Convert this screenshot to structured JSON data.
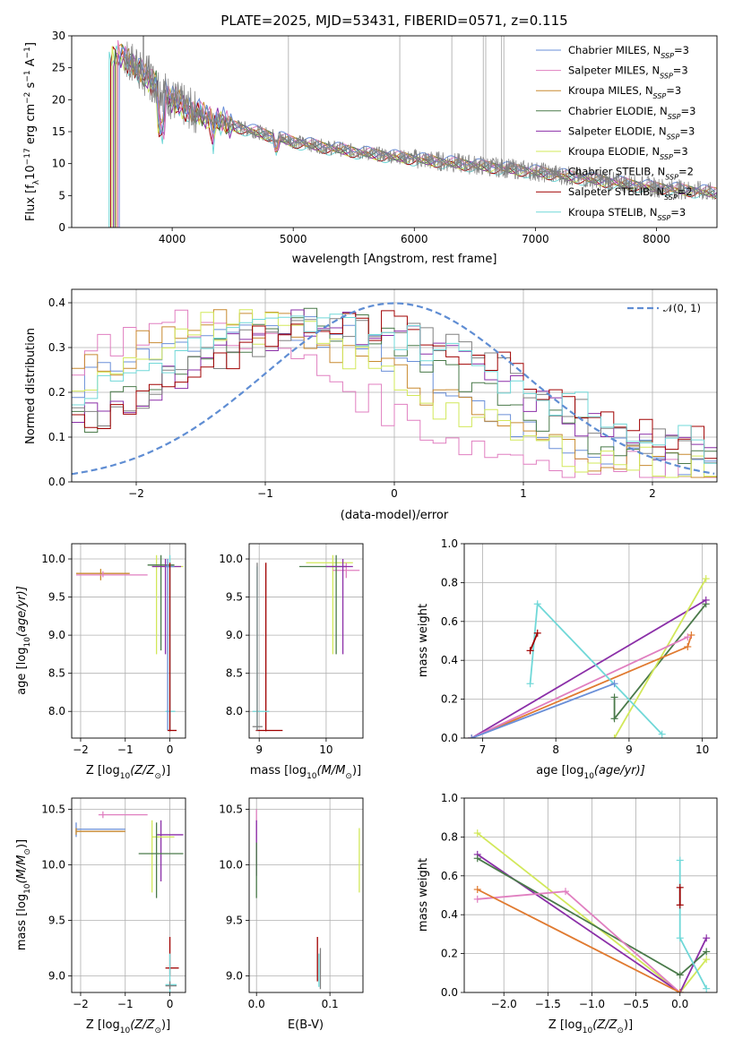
{
  "colors": {
    "chabrier_miles": "#6a8fd8",
    "salpeter_miles": "#e07fc0",
    "kroupa_miles": "#c88a30",
    "chabrier_elodie": "#4a7a4a",
    "salpeter_elodie": "#8b2fa8",
    "kroupa_elodie": "#d2e85a",
    "chabrier_stelib": "#808080",
    "salpeter_stelib": "#a00000",
    "kroupa_stelib": "#70d8d8",
    "normal": "#5f8dd3",
    "kroupa_fit": "#e07a30"
  },
  "chart_data": [
    {
      "id": "spectrum",
      "type": "line",
      "title": "PLATE=2025, MJD=53431, FIBERID=0571, z=0.115",
      "xlabel": "wavelength [Angstrom, rest frame]",
      "ylabel_main": "Flux [f",
      "ylabel_sub": "λ",
      "ylabel_mid": "10",
      "ylabel_exp": "−17",
      "ylabel_tail": " erg cm",
      "ylabel_exp2": "−2",
      "ylabel_tail2": " s",
      "ylabel_exp3": "−1",
      "ylabel_tail3": " A",
      "ylabel_exp4": "−1",
      "ylabel_end": "]",
      "xlim": [
        3170,
        8500
      ],
      "ylim": [
        0,
        30
      ],
      "xticks": [
        4000,
        5000,
        6000,
        7000,
        8000
      ],
      "xtick_labels": [
        "4000",
        "5000",
        "6000",
        "7000",
        "8000"
      ],
      "yticks": [
        0,
        5,
        10,
        15,
        20,
        25,
        30
      ],
      "ytick_labels": [
        "0",
        "5",
        "10",
        "15",
        "20",
        "25",
        "30"
      ],
      "grid": false,
      "legend_position": "top-right",
      "continuum": {
        "x": [
          3600,
          3700,
          3800,
          3900,
          4000,
          4200,
          4500,
          4800,
          5000,
          5300,
          5600,
          6000,
          6500,
          7000,
          7500,
          8000,
          8500
        ],
        "y": [
          27,
          25,
          23.5,
          22,
          20,
          18,
          16,
          14.5,
          13.5,
          12.5,
          11.7,
          10.8,
          9.8,
          8.8,
          7.5,
          6.3,
          5.5
        ]
      },
      "series": [
        {
          "name": "Chabrier MILES, N",
          "sub": "SSP",
          "tail": "=3",
          "color_key": "chabrier_miles"
        },
        {
          "name": "Salpeter MILES, N",
          "sub": "SSP",
          "tail": "=3",
          "color_key": "salpeter_miles"
        },
        {
          "name": "Kroupa MILES, N",
          "sub": "SSP",
          "tail": "=3",
          "color_key": "kroupa_miles"
        },
        {
          "name": "Chabrier ELODIE, N",
          "sub": "SSP",
          "tail": "=3",
          "color_key": "chabrier_elodie"
        },
        {
          "name": "Salpeter ELODIE, N",
          "sub": "SSP",
          "tail": "=3",
          "color_key": "salpeter_elodie"
        },
        {
          "name": "Kroupa ELODIE, N",
          "sub": "SSP",
          "tail": "=3",
          "color_key": "kroupa_elodie"
        },
        {
          "name": "Chabrier STELIB, N",
          "sub": "SSP",
          "tail": "=2",
          "color_key": "chabrier_stelib"
        },
        {
          "name": "Salpeter STELIB, N",
          "sub": "SSP",
          "tail": "=2",
          "color_key": "salpeter_stelib"
        },
        {
          "name": "Kroupa STELIB, N",
          "sub": "SSP",
          "tail": "=3",
          "color_key": "kroupa_stelib"
        }
      ],
      "spikes_x": [
        4960,
        5880,
        6310,
        6570,
        6590,
        6720,
        6740
      ]
    },
    {
      "id": "residuals",
      "type": "line",
      "xlabel": "(data-model)/error",
      "ylabel": "Normed distribution",
      "xlim": [
        -2.5,
        2.5
      ],
      "ylim": [
        0,
        0.43
      ],
      "xticks": [
        -2,
        -1,
        0,
        1,
        2
      ],
      "xtick_labels": [
        "−2",
        "−1",
        "0",
        "1",
        "2"
      ],
      "yticks": [
        0,
        0.1,
        0.2,
        0.3,
        0.4
      ],
      "ytick_labels": [
        "0.0",
        "0.1",
        "0.2",
        "0.3",
        "0.4"
      ],
      "grid": true,
      "legend_position": "top-right",
      "legend_label": "𝒩(0, 1)",
      "normal_curve": {
        "mean": 0,
        "sigma": 1
      }
    },
    {
      "id": "age-vs-Z",
      "type": "scatter",
      "xlabel_main": "Z [log",
      "xlabel_sub": "10",
      "xlabel_tail": "(Z/Z",
      "xlabel_sun": "⊙",
      "xlabel_end": ")]",
      "ylabel_main": "age  [log",
      "ylabel_sub": "10",
      "ylabel_tail": "(age/yr)]",
      "xlim": [
        -2.2,
        0.35
      ],
      "ylim": [
        7.65,
        10.2
      ],
      "xticks": [
        -2,
        -1,
        0
      ],
      "xtick_labels": [
        "−2",
        "−1",
        "0"
      ],
      "yticks": [
        8.0,
        8.5,
        9.0,
        9.5,
        10.0
      ],
      "ytick_labels": [
        "8.0",
        "8.5",
        "9.0",
        "9.5",
        "10.0"
      ],
      "grid": true
    },
    {
      "id": "age-vs-mass",
      "type": "scatter",
      "xlabel_main": "mass [log",
      "xlabel_sub": "10",
      "xlabel_tail": "(M/M",
      "xlabel_sun": "⊙",
      "xlabel_end": ")]",
      "xlim": [
        8.85,
        10.55
      ],
      "ylim": [
        7.65,
        10.2
      ],
      "xticks": [
        9,
        10
      ],
      "xtick_labels": [
        "9",
        "10"
      ],
      "yticks": [
        8.0,
        8.5,
        9.0,
        9.5,
        10.0
      ],
      "ytick_labels": [
        "8.0",
        "8.5",
        "9.0",
        "9.5",
        "10.0"
      ],
      "grid": true
    },
    {
      "id": "weight-vs-age",
      "type": "line",
      "xlabel_main": "age  [log",
      "xlabel_sub": "10",
      "xlabel_tail": "(age/yr)]",
      "ylabel": "mass weight",
      "xlim": [
        6.75,
        10.2
      ],
      "ylim": [
        0,
        1.0
      ],
      "xticks": [
        7,
        8,
        9,
        10
      ],
      "xtick_labels": [
        "7",
        "8",
        "9",
        "10"
      ],
      "yticks": [
        0,
        0.2,
        0.4,
        0.6,
        0.8,
        1.0
      ],
      "ytick_labels": [
        "0.0",
        "0.2",
        "0.4",
        "0.6",
        "0.8",
        "1.0"
      ],
      "grid": true,
      "series": [
        {
          "color_key": "chabrier_elodie",
          "x": [
            8.8,
            8.8,
            10.05
          ],
          "y": [
            0.21,
            0.1,
            0.69
          ]
        },
        {
          "color_key": "salpeter_elodie",
          "x": [
            6.85,
            10.05
          ],
          "y": [
            0.0,
            0.71
          ]
        },
        {
          "color_key": "kroupa_elodie",
          "x": [
            8.8,
            10.05
          ],
          "y": [
            0.0,
            0.82
          ]
        },
        {
          "color_key": "kroupa_fit",
          "x": [
            6.85,
            9.8,
            9.85
          ],
          "y": [
            0.0,
            0.47,
            0.53
          ]
        },
        {
          "color_key": "salpeter_miles",
          "x": [
            6.85,
            9.8
          ],
          "y": [
            0.0,
            0.52
          ]
        },
        {
          "color_key": "kroupa_stelib",
          "x": [
            7.65,
            7.75,
            9.45
          ],
          "y": [
            0.28,
            0.69,
            0.02
          ]
        },
        {
          "color_key": "salpeter_stelib",
          "x": [
            7.65,
            7.75
          ],
          "y": [
            0.45,
            0.54
          ]
        },
        {
          "color_key": "chabrier_miles",
          "x": [
            6.85,
            8.8
          ],
          "y": [
            0.0,
            0.28
          ]
        }
      ]
    },
    {
      "id": "mass-vs-Z",
      "type": "scatter",
      "xlabel_main": "Z [log",
      "xlabel_sub": "10",
      "xlabel_tail": "(Z/Z",
      "xlabel_sun": "⊙",
      "xlabel_end": ")]",
      "ylabel_main": "mass [log",
      "ylabel_sub": "10",
      "ylabel_tail": "(M/M",
      "ylabel_sun": "⊙",
      "ylabel_end": ")]",
      "xlim": [
        -2.2,
        0.35
      ],
      "ylim": [
        8.85,
        10.6
      ],
      "xticks": [
        -2,
        -1,
        0
      ],
      "xtick_labels": [
        "−2",
        "−1",
        "0"
      ],
      "yticks": [
        9.0,
        9.5,
        10.0,
        10.5
      ],
      "ytick_labels": [
        "9.0",
        "9.5",
        "10.0",
        "10.5"
      ],
      "grid": true
    },
    {
      "id": "mass-vs-ebv",
      "type": "scatter",
      "xlabel": "E(B-V)",
      "xlim": [
        -0.01,
        0.145
      ],
      "ylim": [
        8.85,
        10.6
      ],
      "xticks": [
        0.0,
        0.1
      ],
      "xtick_labels": [
        "0.0",
        "0.1"
      ],
      "yticks": [
        9.0,
        9.5,
        10.0,
        10.5
      ],
      "ytick_labels": [
        "9.0",
        "9.5",
        "10.0",
        "10.5"
      ],
      "grid": true
    },
    {
      "id": "weight-vs-Z",
      "type": "line",
      "xlabel_main": "Z [log",
      "xlabel_sub": "10",
      "xlabel_tail": "(Z/Z",
      "xlabel_sun": "⊙",
      "xlabel_end": ")]",
      "ylabel": "mass weight",
      "xlim": [
        -2.45,
        0.42
      ],
      "ylim": [
        0,
        1.0
      ],
      "xticks": [
        -2.0,
        -1.5,
        -1.0,
        -0.5,
        0.0
      ],
      "xtick_labels": [
        "−2.0",
        "−1.5",
        "−1.0",
        "−0.5",
        "0.0"
      ],
      "yticks": [
        0,
        0.2,
        0.4,
        0.6,
        0.8,
        1.0
      ],
      "ytick_labels": [
        "0.0",
        "0.2",
        "0.4",
        "0.6",
        "0.8",
        "1.0"
      ],
      "grid": true,
      "series": [
        {
          "color_key": "kroupa_elodie",
          "x": [
            -2.3,
            0.0,
            0.3
          ],
          "y": [
            0.82,
            0.0,
            0.17
          ]
        },
        {
          "color_key": "salpeter_elodie",
          "x": [
            -2.3,
            0.0,
            0.3
          ],
          "y": [
            0.71,
            0.0,
            0.28
          ]
        },
        {
          "color_key": "chabrier_elodie",
          "x": [
            -2.3,
            0.0,
            0.3
          ],
          "y": [
            0.69,
            0.09,
            0.21
          ]
        },
        {
          "color_key": "salpeter_miles",
          "x": [
            -2.3,
            -1.3,
            0.0
          ],
          "y": [
            0.48,
            0.52,
            0.0
          ]
        },
        {
          "color_key": "kroupa_fit",
          "x": [
            -2.3,
            0.0
          ],
          "y": [
            0.53,
            0.0
          ]
        },
        {
          "color_key": "kroupa_stelib",
          "x": [
            0.0,
            0.0,
            0.3
          ],
          "y": [
            0.68,
            0.28,
            0.02
          ]
        },
        {
          "color_key": "salpeter_stelib",
          "x": [
            0.0,
            0.0
          ],
          "y": [
            0.45,
            0.54
          ]
        }
      ]
    }
  ]
}
